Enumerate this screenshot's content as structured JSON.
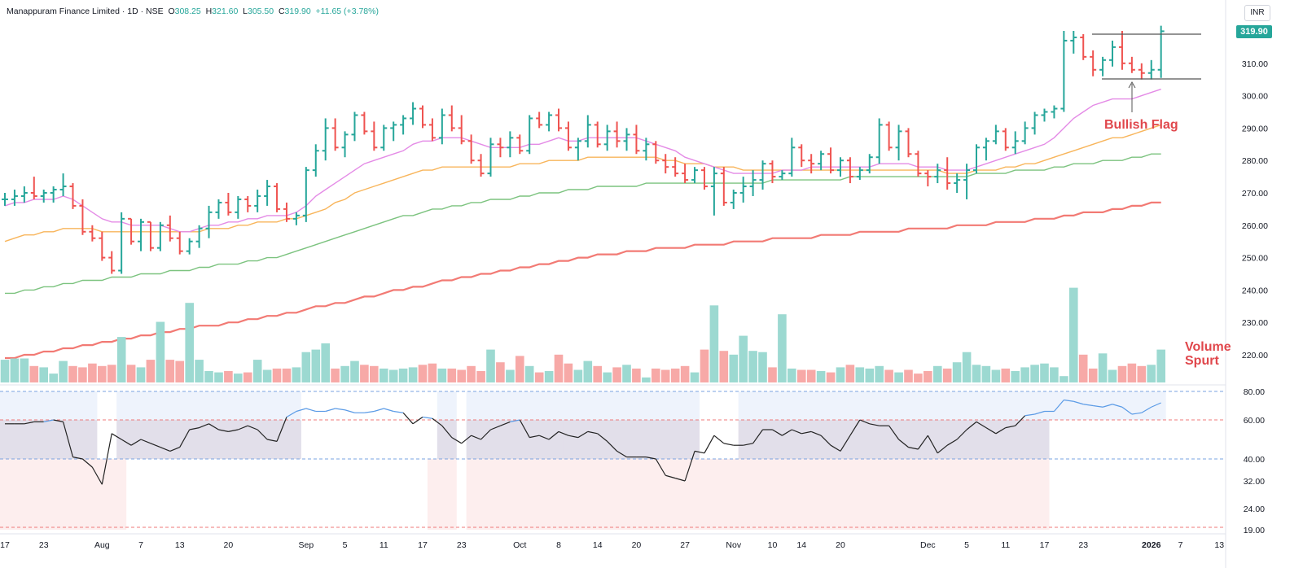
{
  "header": {
    "symbol": "Manappuram Finance Limited · 1D · NSE",
    "open_label": "O",
    "open": "308.25",
    "high_label": "H",
    "high": "321.60",
    "low_label": "L",
    "low": "305.50",
    "close_label": "C",
    "close": "319.90",
    "change": "+11.65 (+3.78%)"
  },
  "currency": "INR",
  "last_price": "319.90",
  "annotations": {
    "flag": "Bullish Flag",
    "volume_line1": "Volume",
    "volume_line2": "Spurt"
  },
  "colors": {
    "up": "#26a69a",
    "down": "#ef5350",
    "vol_up": "#9cd9d1",
    "vol_down": "#f7a9a7",
    "ema20": "#e48be6",
    "ema50": "#f8b55b",
    "ema100": "#7cc37f",
    "ema200": "#f27a74",
    "rsi_line": "#222222",
    "rsi_line_high": "#5b9be6"
  },
  "chart_data": {
    "type": "ohlc",
    "price_axis": {
      "ticks": [
        "320.00",
        "310.00",
        "300.00",
        "290.00",
        "280.00",
        "270.00",
        "260.00",
        "250.00",
        "240.00",
        "230.00",
        "220.00"
      ]
    },
    "rsi_axis": {
      "ticks": [
        "80.00",
        "60.00",
        "40.00",
        "32.00",
        "24.00",
        "19.00"
      ]
    },
    "x_ticks": [
      {
        "label": "17",
        "i": 0
      },
      {
        "label": "23",
        "i": 4
      },
      {
        "label": "Aug",
        "i": 10
      },
      {
        "label": "7",
        "i": 14
      },
      {
        "label": "13",
        "i": 18
      },
      {
        "label": "20",
        "i": 23
      },
      {
        "label": "Sep",
        "i": 31
      },
      {
        "label": "5",
        "i": 35
      },
      {
        "label": "11",
        "i": 39
      },
      {
        "label": "17",
        "i": 43
      },
      {
        "label": "23",
        "i": 47
      },
      {
        "label": "Oct",
        "i": 53
      },
      {
        "label": "8",
        "i": 57
      },
      {
        "label": "14",
        "i": 61
      },
      {
        "label": "20",
        "i": 65
      },
      {
        "label": "27",
        "i": 70
      },
      {
        "label": "Nov",
        "i": 75
      },
      {
        "label": "10",
        "i": 79
      },
      {
        "label": "14",
        "i": 82
      },
      {
        "label": "20",
        "i": 86
      },
      {
        "label": "Dec",
        "i": 95
      },
      {
        "label": "5",
        "i": 99
      },
      {
        "label": "11",
        "i": 103
      },
      {
        "label": "17",
        "i": 107
      },
      {
        "label": "23",
        "i": 111
      },
      {
        "label": "2026",
        "i": 118
      },
      {
        "label": "7",
        "i": 121
      },
      {
        "label": "13",
        "i": 125
      }
    ],
    "bars": [
      [
        268,
        270,
        266,
        268
      ],
      [
        268,
        271,
        266,
        269
      ],
      [
        269,
        272,
        267,
        270
      ],
      [
        270,
        275,
        268,
        269
      ],
      [
        269,
        271,
        267,
        270
      ],
      [
        270,
        272,
        267,
        271
      ],
      [
        271,
        276,
        269,
        272
      ],
      [
        272,
        273,
        265,
        266
      ],
      [
        266,
        268,
        257,
        258
      ],
      [
        258,
        260,
        255,
        256
      ],
      [
        256,
        258,
        249,
        250
      ],
      [
        250,
        252,
        245,
        246
      ],
      [
        246,
        264,
        245,
        262
      ],
      [
        262,
        262,
        254,
        255
      ],
      [
        255,
        262,
        252,
        261
      ],
      [
        261,
        261,
        252,
        253
      ],
      [
        253,
        261,
        252,
        260
      ],
      [
        260,
        263,
        255,
        256
      ],
      [
        256,
        258,
        251,
        252
      ],
      [
        252,
        256,
        251,
        255
      ],
      [
        255,
        260,
        253,
        259
      ],
      [
        259,
        266,
        256,
        264
      ],
      [
        264,
        268,
        262,
        267
      ],
      [
        267,
        270,
        263,
        264
      ],
      [
        264,
        269,
        262,
        268
      ],
      [
        268,
        269,
        264,
        266
      ],
      [
        266,
        271,
        264,
        269
      ],
      [
        269,
        274,
        266,
        272
      ],
      [
        272,
        273,
        264,
        265
      ],
      [
        265,
        267,
        261,
        262
      ],
      [
        262,
        264,
        260,
        263
      ],
      [
        263,
        278,
        261,
        277
      ],
      [
        277,
        285,
        275,
        283
      ],
      [
        283,
        293,
        280,
        290
      ],
      [
        290,
        293,
        283,
        284
      ],
      [
        284,
        289,
        281,
        288
      ],
      [
        288,
        295,
        286,
        294
      ],
      [
        294,
        295,
        288,
        289
      ],
      [
        289,
        292,
        283,
        284
      ],
      [
        284,
        291,
        283,
        290
      ],
      [
        290,
        292,
        286,
        291
      ],
      [
        291,
        294,
        288,
        293
      ],
      [
        293,
        298,
        291,
        296
      ],
      [
        296,
        297,
        290,
        291
      ],
      [
        291,
        293,
        286,
        287
      ],
      [
        287,
        296,
        285,
        294
      ],
      [
        294,
        297,
        289,
        290
      ],
      [
        290,
        294,
        285,
        286
      ],
      [
        286,
        288,
        279,
        280
      ],
      [
        280,
        282,
        275,
        276
      ],
      [
        276,
        287,
        275,
        285
      ],
      [
        285,
        287,
        281,
        284
      ],
      [
        284,
        289,
        281,
        287
      ],
      [
        287,
        288,
        282,
        283
      ],
      [
        283,
        294,
        282,
        293
      ],
      [
        293,
        295,
        290,
        291
      ],
      [
        291,
        295,
        289,
        294
      ],
      [
        294,
        296,
        289,
        290
      ],
      [
        290,
        292,
        283,
        284
      ],
      [
        284,
        287,
        280,
        286
      ],
      [
        286,
        294,
        284,
        291
      ],
      [
        291,
        292,
        284,
        285
      ],
      [
        285,
        291,
        283,
        289
      ],
      [
        289,
        292,
        284,
        286
      ],
      [
        286,
        290,
        283,
        288
      ],
      [
        288,
        291,
        282,
        283
      ],
      [
        283,
        287,
        280,
        285
      ],
      [
        285,
        286,
        279,
        280
      ],
      [
        280,
        282,
        276,
        278
      ],
      [
        278,
        281,
        275,
        276
      ],
      [
        276,
        279,
        273,
        274
      ],
      [
        274,
        278,
        273,
        277
      ],
      [
        277,
        278,
        271,
        272
      ],
      [
        272,
        278,
        263,
        276
      ],
      [
        276,
        278,
        266,
        267
      ],
      [
        267,
        271,
        265,
        270
      ],
      [
        270,
        275,
        267,
        272
      ],
      [
        272,
        277,
        269,
        274
      ],
      [
        274,
        280,
        271,
        279
      ],
      [
        279,
        280,
        273,
        275
      ],
      [
        275,
        277,
        274,
        276
      ],
      [
        276,
        287,
        275,
        284
      ],
      [
        284,
        285,
        278,
        280
      ],
      [
        280,
        282,
        276,
        279
      ],
      [
        279,
        283,
        277,
        282
      ],
      [
        282,
        284,
        276,
        277
      ],
      [
        277,
        281,
        275,
        280
      ],
      [
        280,
        281,
        273,
        275
      ],
      [
        275,
        278,
        274,
        277
      ],
      [
        277,
        282,
        276,
        281
      ],
      [
        281,
        293,
        279,
        291
      ],
      [
        291,
        292,
        283,
        284
      ],
      [
        284,
        291,
        280,
        289
      ],
      [
        289,
        290,
        281,
        282
      ],
      [
        282,
        283,
        275,
        276
      ],
      [
        276,
        277,
        272,
        275
      ],
      [
        275,
        279,
        273,
        277
      ],
      [
        277,
        281,
        271,
        273
      ],
      [
        273,
        276,
        270,
        274
      ],
      [
        274,
        279,
        268,
        277
      ],
      [
        277,
        285,
        276,
        284
      ],
      [
        284,
        287,
        280,
        286
      ],
      [
        286,
        291,
        285,
        289
      ],
      [
        289,
        290,
        283,
        284
      ],
      [
        284,
        289,
        282,
        286
      ],
      [
        286,
        292,
        285,
        290
      ],
      [
        290,
        295,
        288,
        294
      ],
      [
        294,
        296,
        292,
        295
      ],
      [
        295,
        297,
        293,
        296
      ],
      [
        296,
        320,
        295,
        317
      ],
      [
        317,
        320,
        313,
        318
      ],
      [
        318,
        319,
        311,
        312
      ],
      [
        312,
        314,
        306,
        308
      ],
      [
        308,
        312,
        306,
        311
      ],
      [
        311,
        317,
        309,
        315
      ],
      [
        315,
        320,
        308,
        310
      ],
      [
        310,
        312,
        307,
        308
      ],
      [
        308,
        310,
        305,
        307
      ],
      [
        307,
        311,
        305,
        308
      ],
      [
        308,
        321.6,
        305.5,
        319.9
      ]
    ],
    "volume": [
      1.8,
      1.9,
      1.9,
      1.3,
      1.2,
      0.7,
      1.7,
      1.3,
      1.2,
      1.5,
      1.3,
      1.4,
      3.6,
      1.4,
      1.2,
      1.8,
      4.8,
      1.8,
      1.7,
      6.3,
      1.8,
      0.9,
      0.8,
      0.9,
      0.7,
      0.8,
      1.8,
      1.0,
      1.1,
      1.1,
      1.2,
      2.4,
      2.6,
      3.1,
      1.1,
      1.3,
      1.7,
      1.4,
      1.3,
      1.1,
      1.0,
      1.1,
      1.2,
      1.4,
      1.5,
      1.1,
      1.1,
      1.0,
      1.3,
      0.9,
      2.6,
      1.6,
      1.0,
      2.1,
      1.3,
      0.8,
      0.9,
      2.2,
      1.5,
      1.0,
      1.7,
      1.3,
      0.8,
      1.2,
      1.4,
      1.1,
      0.4,
      1.1,
      1.0,
      1.1,
      1.3,
      0.8,
      2.6,
      6.1,
      2.5,
      2.2,
      3.7,
      2.5,
      2.4,
      1.2,
      5.4,
      1.1,
      1.0,
      1.0,
      0.9,
      0.8,
      1.2,
      1.4,
      1.2,
      1.1,
      1.3,
      1.0,
      0.8,
      1.0,
      0.7,
      0.9,
      1.3,
      1.1,
      1.6,
      2.4,
      1.4,
      1.3,
      1.0,
      1.1,
      0.9,
      1.2,
      1.4,
      1.5,
      1.2,
      0.5,
      7.5,
      2.2,
      1.1,
      2.3,
      1.0,
      1.3,
      1.5,
      1.3,
      1.4,
      2.6
    ],
    "rsi": [
      58,
      58,
      58,
      59,
      59,
      60,
      59,
      41,
      40,
      37,
      31,
      53,
      50,
      47,
      50,
      48,
      46,
      44,
      46,
      55,
      56,
      58,
      55,
      54,
      55,
      57,
      55,
      50,
      49,
      62,
      66,
      68,
      66,
      66,
      68,
      67,
      65,
      65,
      66,
      68,
      66,
      65,
      58,
      62,
      61,
      57,
      51,
      48,
      52,
      50,
      55,
      57,
      59,
      60,
      51,
      52,
      50,
      54,
      52,
      51,
      54,
      53,
      49,
      44,
      41,
      41,
      41,
      40,
      34,
      33,
      32,
      44,
      43,
      52,
      48,
      47,
      47,
      48,
      55,
      55,
      52,
      55,
      53,
      54,
      52,
      47,
      44,
      52,
      60,
      58,
      57,
      57,
      50,
      46,
      45,
      52,
      43,
      47,
      50,
      55,
      59,
      56,
      53,
      56,
      57,
      63,
      64,
      66,
      66,
      74,
      73,
      71,
      70,
      69,
      71,
      69,
      64,
      65,
      69,
      72
    ],
    "ema20": [
      266,
      267,
      267,
      268,
      268,
      268,
      269,
      268,
      266,
      264,
      262,
      261,
      261,
      260,
      260,
      260,
      260,
      259,
      258,
      258,
      259,
      260,
      260,
      261,
      261,
      262,
      262,
      263,
      263,
      263,
      264,
      266,
      269,
      271,
      273,
      275,
      277,
      279,
      280,
      281,
      282,
      283,
      285,
      286,
      286,
      287,
      287,
      287,
      286,
      285,
      284,
      284,
      284,
      284,
      285,
      285,
      286,
      287,
      286,
      286,
      287,
      287,
      287,
      287,
      287,
      287,
      286,
      285,
      284,
      283,
      281,
      280,
      279,
      278,
      277,
      276,
      276,
      276,
      276,
      276,
      277,
      277,
      277,
      278,
      278,
      278,
      278,
      278,
      278,
      278,
      279,
      279,
      279,
      279,
      278,
      278,
      278,
      277,
      277,
      277,
      278,
      279,
      280,
      281,
      282,
      283,
      284,
      285,
      287,
      290,
      293,
      295,
      297,
      298,
      299,
      299,
      299,
      300,
      301,
      302
    ],
    "ema50": [
      255,
      256,
      257,
      257,
      258,
      258,
      259,
      259,
      259,
      259,
      258,
      258,
      258,
      258,
      258,
      258,
      258,
      258,
      258,
      258,
      258,
      259,
      259,
      259,
      260,
      260,
      261,
      261,
      261,
      262,
      262,
      263,
      264,
      265,
      267,
      268,
      270,
      271,
      272,
      273,
      274,
      275,
      276,
      277,
      277,
      278,
      278,
      278,
      278,
      278,
      278,
      278,
      278,
      279,
      279,
      279,
      280,
      280,
      280,
      280,
      281,
      281,
      281,
      281,
      281,
      281,
      281,
      281,
      280,
      280,
      279,
      279,
      279,
      278,
      278,
      278,
      277,
      277,
      277,
      277,
      277,
      277,
      277,
      277,
      277,
      277,
      277,
      277,
      277,
      277,
      277,
      277,
      277,
      277,
      277,
      277,
      277,
      276,
      276,
      276,
      277,
      277,
      277,
      278,
      278,
      279,
      279,
      280,
      281,
      282,
      283,
      284,
      285,
      286,
      287,
      287,
      288,
      289,
      290,
      291
    ],
    "ema100": [
      239,
      239,
      240,
      240,
      241,
      241,
      242,
      242,
      243,
      243,
      243,
      244,
      244,
      244,
      245,
      245,
      245,
      246,
      246,
      246,
      247,
      247,
      248,
      248,
      248,
      249,
      249,
      250,
      250,
      251,
      252,
      253,
      254,
      255,
      256,
      257,
      258,
      259,
      260,
      261,
      262,
      263,
      263,
      264,
      265,
      265,
      266,
      266,
      267,
      267,
      268,
      268,
      268,
      269,
      269,
      270,
      270,
      270,
      271,
      271,
      271,
      272,
      272,
      272,
      272,
      272,
      273,
      273,
      273,
      273,
      273,
      273,
      273,
      273,
      273,
      273,
      273,
      273,
      273,
      274,
      274,
      274,
      274,
      274,
      274,
      274,
      274,
      275,
      275,
      275,
      275,
      275,
      275,
      275,
      275,
      275,
      275,
      275,
      275,
      275,
      276,
      276,
      276,
      276,
      277,
      277,
      277,
      277,
      278,
      278,
      279,
      279,
      279,
      280,
      280,
      280,
      281,
      281,
      282,
      282
    ],
    "ema200": [
      219,
      219,
      220,
      220,
      221,
      221,
      222,
      222,
      223,
      223,
      224,
      224,
      225,
      225,
      226,
      226,
      227,
      227,
      228,
      228,
      229,
      229,
      229,
      230,
      230,
      231,
      231,
      232,
      232,
      233,
      233,
      234,
      235,
      235,
      236,
      236,
      237,
      238,
      238,
      239,
      240,
      240,
      241,
      241,
      242,
      243,
      243,
      244,
      244,
      245,
      245,
      246,
      246,
      247,
      247,
      248,
      248,
      249,
      249,
      250,
      250,
      251,
      251,
      251,
      252,
      252,
      252,
      253,
      253,
      253,
      253,
      254,
      254,
      254,
      254,
      255,
      255,
      255,
      255,
      256,
      256,
      256,
      256,
      256,
      257,
      257,
      257,
      257,
      258,
      258,
      258,
      258,
      258,
      259,
      259,
      259,
      259,
      259,
      260,
      260,
      260,
      260,
      261,
      261,
      261,
      261,
      262,
      262,
      262,
      263,
      263,
      264,
      264,
      264,
      265,
      265,
      266,
      266,
      267,
      267
    ]
  }
}
